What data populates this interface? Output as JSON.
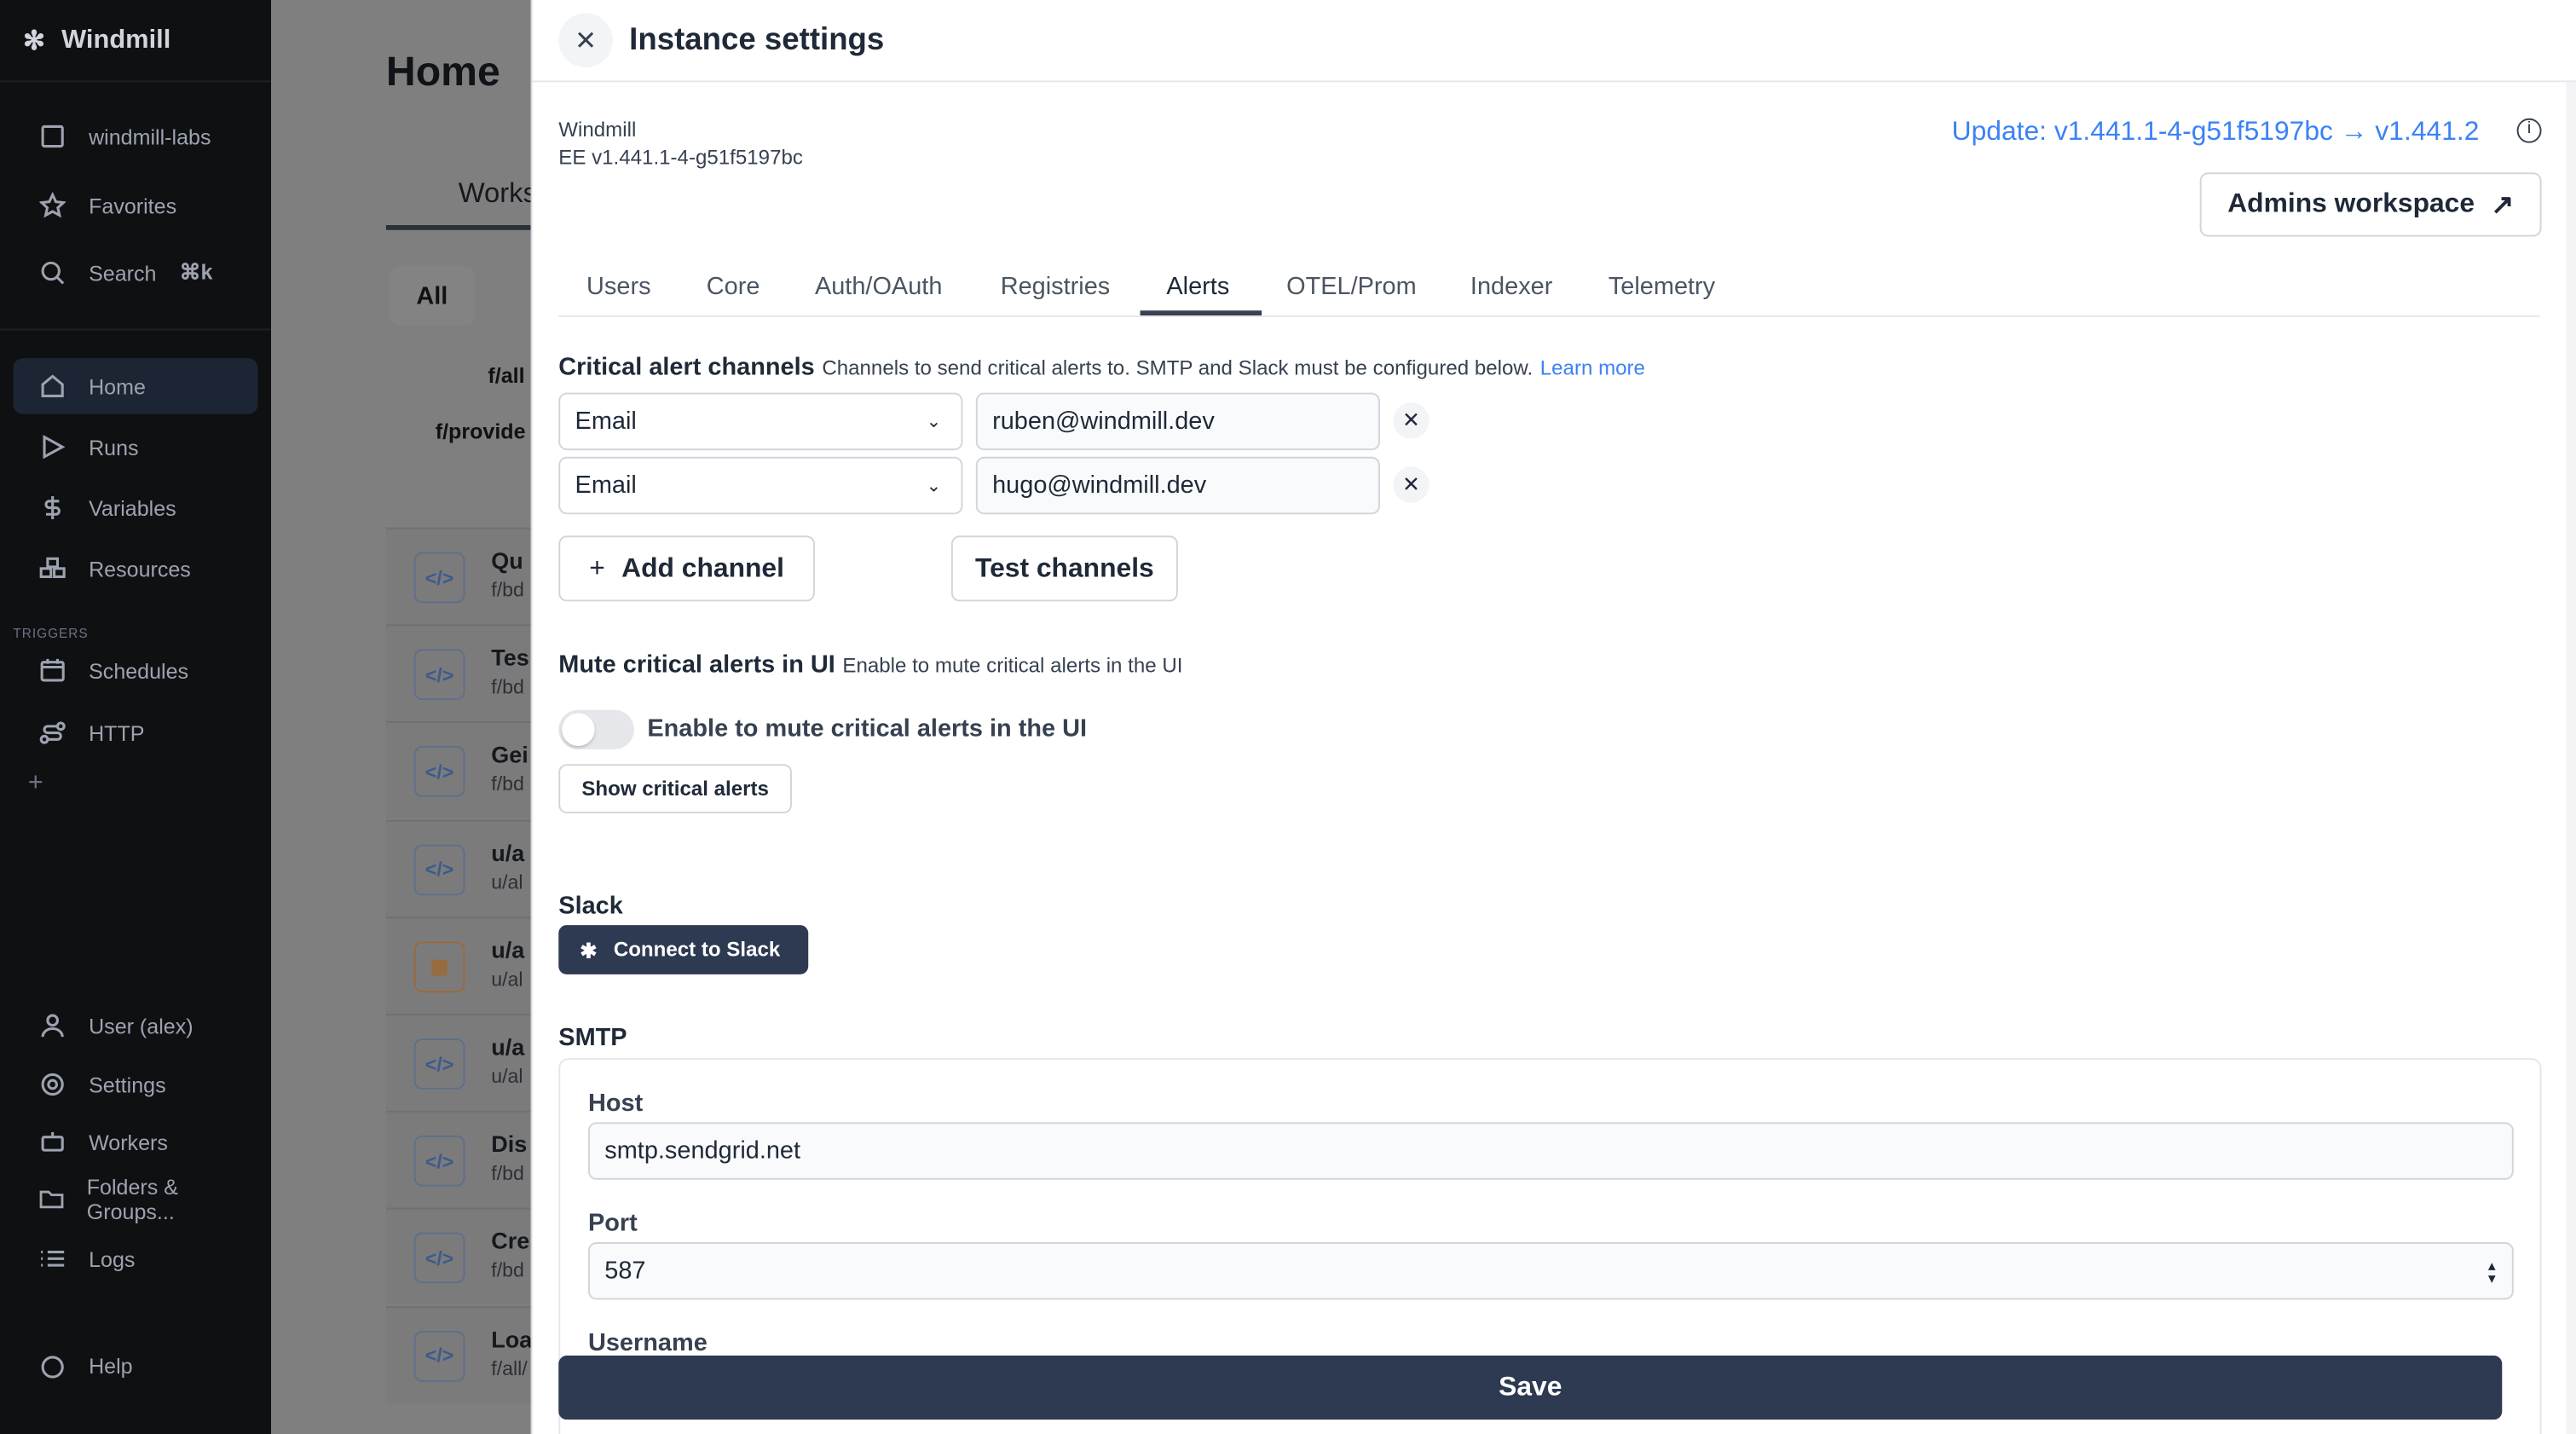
{
  "sidebar": {
    "brand": "Windmill",
    "workspace": "windmill-labs",
    "favorites": "Favorites",
    "search": "Search",
    "search_shortcut": "⌘k",
    "items": [
      {
        "label": "Home",
        "icon": "home-icon"
      },
      {
        "label": "Runs",
        "icon": "play-icon"
      },
      {
        "label": "Variables",
        "icon": "dollar-icon"
      },
      {
        "label": "Resources",
        "icon": "boxes-icon"
      }
    ],
    "triggers_label": "TRIGGERS",
    "triggers": [
      {
        "label": "Schedules",
        "icon": "calendar-icon"
      },
      {
        "label": "HTTP",
        "icon": "route-icon"
      }
    ],
    "bottom": [
      {
        "label": "User (alex)"
      },
      {
        "label": "Settings"
      },
      {
        "label": "Workers"
      },
      {
        "label": "Folders & Groups..."
      },
      {
        "label": "Logs"
      },
      {
        "label": "Help"
      }
    ]
  },
  "background": {
    "title": "Home",
    "tab": "Works",
    "filter_all": "All",
    "folders": [
      "f/all",
      "f/provide"
    ],
    "rows": [
      {
        "t": "Qu",
        "p": "f/bd"
      },
      {
        "t": "Tes",
        "p": "f/bd"
      },
      {
        "t": "Gei",
        "p": "f/bd"
      },
      {
        "t": "u/a",
        "p": "u/al"
      },
      {
        "t": "u/a",
        "p": "u/al"
      },
      {
        "t": "u/a",
        "p": "u/al"
      },
      {
        "t": "Dis",
        "p": "f/bd"
      },
      {
        "t": "Cre",
        "p": "f/bd"
      },
      {
        "t": "Loa",
        "p": "f/all/"
      }
    ]
  },
  "panel": {
    "title": "Instance settings",
    "product": "Windmill",
    "version": "EE v1.441.1-4-g51f5197bc",
    "update": "Update: v1.441.1-4-g51f5197bc → v1.441.2",
    "admins_workspace": "Admins workspace",
    "tabs": [
      "Users",
      "Core",
      "Auth/OAuth",
      "Registries",
      "Alerts",
      "OTEL/Prom",
      "Indexer",
      "Telemetry"
    ],
    "active_tab": "Alerts",
    "critical": {
      "title": "Critical alert channels",
      "desc": "Channels to send critical alerts to. SMTP and Slack must be configured below.",
      "learn_more": "Learn more",
      "channels": [
        {
          "type": "Email",
          "value": "ruben@windmill.dev"
        },
        {
          "type": "Email",
          "value": "hugo@windmill.dev"
        }
      ],
      "add": "Add channel",
      "test": "Test channels"
    },
    "mute": {
      "title": "Mute critical alerts in UI",
      "desc": "Enable to mute critical alerts in the UI",
      "toggle_label": "Enable to mute critical alerts in the UI",
      "toggle_on": false,
      "show": "Show critical alerts"
    },
    "slack": {
      "title": "Slack",
      "connect": "Connect to Slack"
    },
    "smtp": {
      "title": "SMTP",
      "host_label": "Host",
      "host": "smtp.sendgrid.net",
      "port_label": "Port",
      "port": "587",
      "username_label": "Username"
    },
    "save": "Save"
  },
  "colors": {
    "accent": "#3b82f6",
    "primary_dark": "#2e3a52",
    "sidebar_bg": "#0f1012"
  }
}
